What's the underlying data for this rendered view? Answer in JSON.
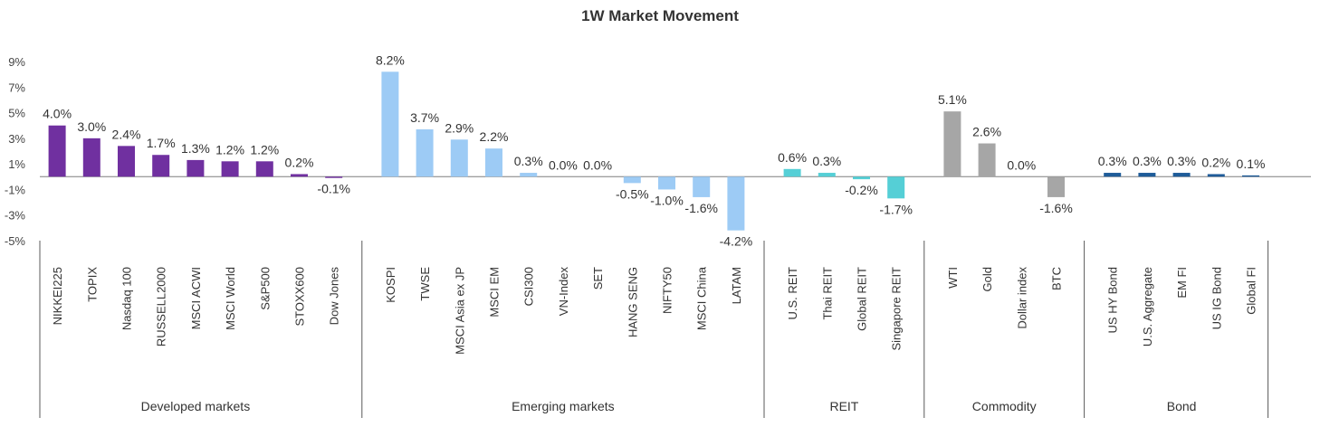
{
  "chart_data": {
    "type": "bar",
    "title": "1W Market Movement",
    "ylim": [
      -5,
      9
    ],
    "y_ticks": [
      9,
      7,
      5,
      3,
      1,
      -1,
      -3,
      -5
    ],
    "y_tick_labels": [
      "9%",
      "7%",
      "5%",
      "3%",
      "1%",
      "-1%",
      "-3%",
      "-5%"
    ],
    "grid": false,
    "legend": "none",
    "groups": [
      {
        "name": "Developed  markets",
        "color": "#7030A0",
        "categories": [
          "NIKKEI225",
          "TOPIX",
          "Nasdaq 100",
          "RUSSELL2000",
          "MSCI ACWI",
          "MSCI World",
          "S&P500",
          "STOXX600",
          "Dow Jones"
        ],
        "values": [
          4.0,
          3.0,
          2.4,
          1.7,
          1.3,
          1.2,
          1.2,
          0.2,
          -0.1
        ],
        "labels": [
          "4.0%",
          "3.0%",
          "2.4%",
          "1.7%",
          "1.3%",
          "1.2%",
          "1.2%",
          "0.2%",
          "-0.1%"
        ]
      },
      {
        "name": "Emerging markets",
        "color": "#9DCBF5",
        "categories": [
          "KOSPI",
          "TWSE",
          "MSCI Asia ex JP",
          "MSCI EM",
          "CSI300",
          "VN-Index",
          "SET",
          "HANG SENG",
          "NIFTY50",
          "MSCI China",
          "LATAM"
        ],
        "values": [
          8.2,
          3.7,
          2.9,
          2.2,
          0.3,
          0.0,
          0.0,
          -0.5,
          -1.0,
          -1.6,
          -4.2
        ],
        "labels": [
          "8.2%",
          "3.7%",
          "2.9%",
          "2.2%",
          "0.3%",
          "0.0%",
          "0.0%",
          "-0.5%",
          "-1.0%",
          "-1.6%",
          "-4.2%"
        ]
      },
      {
        "name": "REIT",
        "color": "#55CFD6",
        "categories": [
          "U.S. REIT",
          "Thai REIT",
          "Global REIT",
          "Singapore REIT"
        ],
        "values": [
          0.6,
          0.3,
          -0.2,
          -1.7
        ],
        "labels": [
          "0.6%",
          "0.3%",
          "-0.2%",
          "-1.7%"
        ]
      },
      {
        "name": "Commodity",
        "color": "#A6A6A6",
        "categories": [
          "WTI",
          "Gold",
          "Dollar index",
          "BTC"
        ],
        "values": [
          5.1,
          2.6,
          0.0,
          -1.6
        ],
        "labels": [
          "5.1%",
          "2.6%",
          "0.0%",
          "-1.6%"
        ]
      },
      {
        "name": "Bond",
        "color": "#1F5C99",
        "categories": [
          "US HY Bond",
          "U.S. Aggregate",
          "EM FI",
          "US IG Bond",
          "Global FI"
        ],
        "values": [
          0.3,
          0.3,
          0.3,
          0.2,
          0.1
        ],
        "labels": [
          "0.3%",
          "0.3%",
          "0.3%",
          "0.2%",
          "0.1%"
        ]
      }
    ]
  }
}
